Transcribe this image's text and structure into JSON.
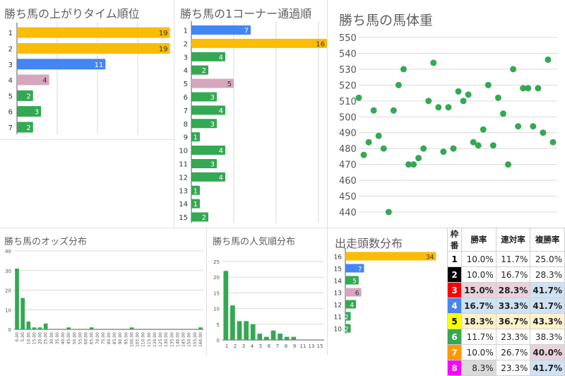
{
  "colors": {
    "green": "#34a853",
    "gold": "#fbbc04",
    "blue": "#4285f4",
    "pink": "#d5a6bd",
    "grid": "#d9d9d9",
    "axis": "#555555"
  },
  "charts": {
    "agari": {
      "title": "勝ち馬の上がりタイム順位",
      "chart_data": {
        "type": "bar",
        "orientation": "horizontal",
        "categories": [
          "1",
          "2",
          "3",
          "4",
          "5",
          "6",
          "7"
        ],
        "values": [
          19,
          19,
          11,
          4,
          2,
          3,
          2
        ],
        "bar_colors": [
          "gold",
          "gold",
          "blue",
          "pink",
          "green",
          "green",
          "green"
        ],
        "xlim": [
          0,
          20
        ]
      }
    },
    "corner": {
      "title": "勝ち馬の1コーナー通過順",
      "chart_data": {
        "type": "bar",
        "orientation": "horizontal",
        "categories": [
          "1",
          "2",
          "3",
          "4",
          "5",
          "6",
          "7",
          "8",
          "9",
          "10",
          "11",
          "12",
          "13",
          "14",
          "15"
        ],
        "values": [
          7,
          16,
          4,
          2,
          5,
          3,
          4,
          3,
          1,
          4,
          3,
          4,
          1,
          1,
          2
        ],
        "bar_colors": [
          "blue",
          "gold",
          "green",
          "green",
          "pink",
          "green",
          "green",
          "green",
          "green",
          "green",
          "green",
          "green",
          "green",
          "green",
          "green"
        ],
        "xlim": [
          0,
          20
        ]
      }
    },
    "weight": {
      "title": "勝ち馬の馬体重",
      "chart_data": {
        "type": "scatter",
        "x": [
          1,
          2,
          3,
          4,
          5,
          6,
          7,
          8,
          9,
          10,
          11,
          12,
          13,
          14,
          15,
          16,
          17,
          18,
          19,
          20,
          21,
          22,
          23,
          24,
          25,
          26,
          27,
          28,
          29,
          30,
          31,
          32,
          33,
          34,
          35,
          36,
          37,
          38,
          39,
          40
        ],
        "y": [
          512,
          476,
          484,
          504,
          488,
          480,
          440,
          504,
          520,
          530,
          470,
          470,
          474,
          480,
          510,
          534,
          506,
          478,
          506,
          480,
          516,
          510,
          514,
          484,
          482,
          492,
          520,
          482,
          512,
          502,
          470,
          530,
          494,
          518,
          518,
          494,
          518,
          490,
          536,
          484
        ],
        "ylim": [
          440,
          550
        ],
        "yticks": [
          440,
          450,
          460,
          470,
          480,
          490,
          500,
          510,
          520,
          530,
          540,
          550
        ],
        "grid": true
      }
    },
    "odds": {
      "title": "勝ち馬のオッズ分布",
      "chart_data": {
        "type": "bar",
        "categories": [
          "0.00",
          "5.00",
          "10.00",
          "15.00",
          "20.00",
          "25.00",
          "30.00",
          "35.00",
          "40.00",
          "45.00",
          "50.00",
          "55.00",
          "60.00",
          "65.00",
          "70.00",
          "75.00",
          "80.00",
          "85.00",
          "90.00",
          "95.00",
          "100.00",
          "105.00",
          "110.00",
          "115.00",
          "120.00",
          "125.00",
          "130.00",
          "135.00",
          "140.00",
          "145.00",
          "150.00",
          "155.00",
          "160.00"
        ],
        "tick_labels": [
          "0.00",
          "5.00",
          "10.00",
          "15.00",
          "20.00",
          "25.00",
          "30.00",
          "35.00",
          "40.00",
          "45.00",
          "50.00",
          "55.00",
          "60.00",
          "65.00",
          "70.00",
          "75.00",
          "80.00",
          "85.00",
          "90.00",
          "95.00",
          "100.00",
          "105.00",
          "110.00",
          "115.00",
          "120.00",
          "125.00",
          "130.00",
          "135.00",
          "140.00",
          "145.00",
          "150.00",
          "155.00",
          "160.00"
        ],
        "values": [
          31,
          16,
          4,
          1,
          1,
          3,
          0,
          0,
          0,
          1,
          0,
          0,
          0,
          1,
          0,
          0,
          0,
          0,
          0,
          0,
          1,
          0,
          0,
          0,
          0,
          0,
          0,
          0,
          0,
          0,
          0,
          0,
          1
        ],
        "ylim": [
          0,
          40
        ],
        "yticks": [
          0,
          10,
          20,
          30,
          40
        ]
      }
    },
    "ninki": {
      "title": "勝ち馬の人気順分布",
      "chart_data": {
        "type": "bar",
        "categories": [
          "1",
          "2",
          "3",
          "4",
          "5",
          "6",
          "7",
          "8",
          "9",
          "10",
          "11",
          "12",
          "13",
          "14",
          "15"
        ],
        "tick_labels": [
          "1",
          "2",
          "3",
          "4",
          "5",
          "6",
          "7",
          "8",
          "9",
          "11",
          "13",
          "15"
        ],
        "values": [
          22,
          11,
          6,
          6,
          5,
          2,
          1,
          3,
          2,
          1,
          1,
          0,
          0,
          0,
          0
        ],
        "ylim": [
          0,
          25
        ],
        "yticks": [
          0,
          5,
          10,
          15,
          20,
          25
        ]
      }
    },
    "tousu": {
      "title": "出走頭数分布",
      "chart_data": {
        "type": "bar",
        "orientation": "horizontal",
        "categories": [
          "16",
          "15",
          "14",
          "13",
          "12",
          "11",
          "10"
        ],
        "values": [
          34,
          7,
          5,
          6,
          4,
          2,
          2
        ],
        "bar_colors": [
          "gold",
          "blue",
          "green",
          "pink",
          "green",
          "green",
          "green"
        ],
        "xlim": [
          0,
          36
        ]
      }
    }
  },
  "waku_table": {
    "headers": [
      "枠番",
      "勝率",
      "連対率",
      "複勝率"
    ],
    "rows": [
      {
        "waku": "1",
        "bg": "#ffffff",
        "fg": "#000000",
        "win": "10.0%",
        "ren": "11.7%",
        "fuku": "25.0%",
        "bold": [
          false,
          false,
          false
        ],
        "hl": [
          "",
          "",
          ""
        ]
      },
      {
        "waku": "2",
        "bg": "#000000",
        "fg": "#ffffff",
        "win": "10.0%",
        "ren": "16.7%",
        "fuku": "28.3%",
        "bold": [
          false,
          false,
          false
        ],
        "hl": [
          "",
          "",
          ""
        ]
      },
      {
        "waku": "3",
        "bg": "#ff0000",
        "fg": "#ffffff",
        "win": "15.0%",
        "ren": "28.3%",
        "fuku": "41.7%",
        "bold": [
          true,
          true,
          true
        ],
        "hl": [
          "#ead1dc",
          "#ead1dc",
          "#cfe2f3"
        ]
      },
      {
        "waku": "4",
        "bg": "#4a86e8",
        "fg": "#ffffff",
        "win": "16.7%",
        "ren": "33.3%",
        "fuku": "41.7%",
        "bold": [
          true,
          true,
          true
        ],
        "hl": [
          "#cfe2f3",
          "#cfe2f3",
          "#cfe2f3"
        ]
      },
      {
        "waku": "5",
        "bg": "#ffff00",
        "fg": "#000000",
        "win": "18.3%",
        "ren": "36.7%",
        "fuku": "43.3%",
        "bold": [
          true,
          true,
          true
        ],
        "hl": [
          "#fff2cc",
          "#fff2cc",
          "#fff2cc"
        ]
      },
      {
        "waku": "6",
        "bg": "#34a853",
        "fg": "#ffffff",
        "win": "11.7%",
        "ren": "23.3%",
        "fuku": "38.3%",
        "bold": [
          false,
          false,
          false
        ],
        "hl": [
          "",
          "",
          ""
        ]
      },
      {
        "waku": "7",
        "bg": "#ff9900",
        "fg": "#ffffff",
        "win": "10.0%",
        "ren": "26.7%",
        "fuku": "40.0%",
        "bold": [
          false,
          false,
          true
        ],
        "hl": [
          "",
          "",
          "#ead1dc"
        ]
      },
      {
        "waku": "8",
        "bg": "#ff00ff",
        "fg": "#ffffff",
        "win": "8.3%",
        "ren": "23.3%",
        "fuku": "41.7%",
        "bold": [
          false,
          false,
          true
        ],
        "hl": [
          "#d9d9d9",
          "",
          "#cfe2f3"
        ]
      }
    ]
  }
}
